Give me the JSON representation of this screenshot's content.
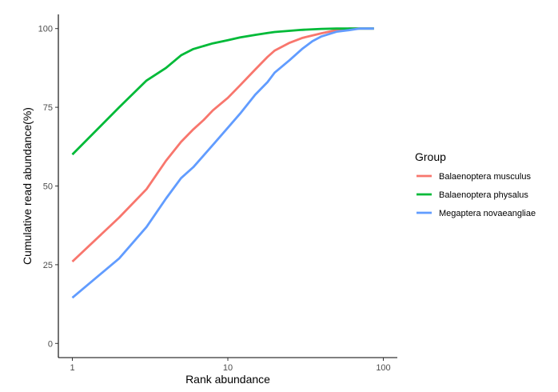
{
  "chart_data": {
    "type": "line",
    "xlabel": "Rank abundance",
    "ylabel": "Cumulative read abundance(%)",
    "x_scale": "log10",
    "xlim": [
      1,
      100
    ],
    "ylim": [
      0,
      100
    ],
    "x_ticks": [
      {
        "value": 1,
        "label": "1"
      },
      {
        "value": 10,
        "label": "10"
      },
      {
        "value": 100,
        "label": "100"
      }
    ],
    "y_ticks": [
      {
        "value": 0,
        "label": "0"
      },
      {
        "value": 25,
        "label": "25"
      },
      {
        "value": 50,
        "label": "50"
      },
      {
        "value": 75,
        "label": "75"
      },
      {
        "value": 100,
        "label": "100"
      }
    ],
    "grid": false,
    "legend": {
      "title": "Group",
      "position": "right"
    },
    "series": [
      {
        "name": "Balaenoptera musculus",
        "color": "#F8766D",
        "x": [
          1,
          2,
          3,
          4,
          5,
          6,
          7,
          8,
          10,
          12,
          15,
          18,
          20,
          25,
          30,
          40,
          50,
          60,
          87
        ],
        "y": [
          26,
          40,
          49,
          58,
          64,
          68,
          71,
          74,
          78,
          82,
          87,
          91,
          93,
          95.5,
          97,
          98.5,
          99.5,
          100,
          100
        ]
      },
      {
        "name": "Balaenoptera physalus",
        "color": "#00BA38",
        "x": [
          1,
          2,
          3,
          4,
          5,
          6,
          8,
          10,
          12,
          15,
          18,
          20,
          25,
          30,
          40,
          50,
          60,
          87
        ],
        "y": [
          60,
          75,
          83.5,
          87.5,
          91.5,
          93.5,
          95.3,
          96.3,
          97.2,
          98,
          98.6,
          98.9,
          99.3,
          99.6,
          99.9,
          100,
          100,
          100
        ]
      },
      {
        "name": "Megaptera novaeangliae",
        "color": "#619CFF",
        "x": [
          1,
          2,
          3,
          4,
          5,
          6,
          8,
          10,
          12,
          15,
          18,
          20,
          25,
          30,
          35,
          40,
          50,
          60,
          70,
          87
        ],
        "y": [
          14.5,
          27,
          37,
          46,
          52.5,
          56,
          63,
          68.5,
          73,
          79,
          83,
          86,
          90,
          93.5,
          96,
          97.5,
          99,
          99.5,
          100,
          100
        ]
      }
    ]
  }
}
